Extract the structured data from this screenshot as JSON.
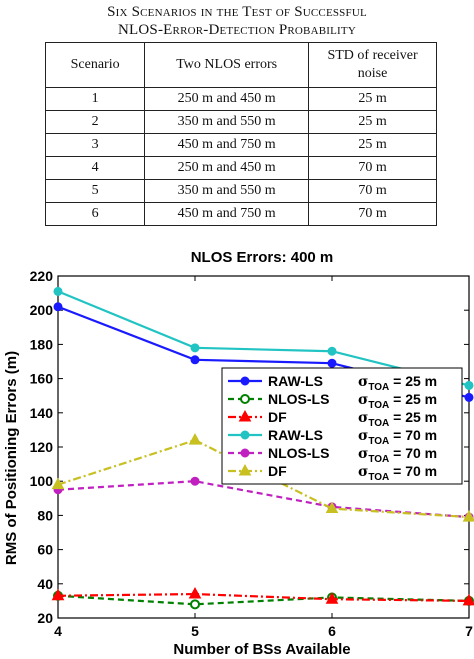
{
  "table": {
    "caption_line1": "Six Scenarios in the Test of Successful",
    "caption_line2": "NLOS-Error-Detection Probability",
    "headers": [
      "Scenario",
      "Two NLOS errors",
      "STD of receiver noise"
    ],
    "rows": [
      [
        "1",
        "250 m and 450 m",
        "25 m"
      ],
      [
        "2",
        "350 m and 550 m",
        "25 m"
      ],
      [
        "3",
        "450 m and 750 m",
        "25 m"
      ],
      [
        "4",
        "250 m and 450 m",
        "70 m"
      ],
      [
        "5",
        "350 m and 550 m",
        "70 m"
      ],
      [
        "6",
        "450 m and 750 m",
        "70 m"
      ]
    ]
  },
  "chart_data": {
    "type": "line",
    "title": "NLOS Errors: 400 m",
    "xlabel": "Number of BSs Available",
    "ylabel": "RMS of Positioning Errors (m)",
    "x": [
      4,
      5,
      6,
      7
    ],
    "xlim": [
      4,
      7
    ],
    "ylim": [
      20,
      220
    ],
    "xticks": [
      4,
      5,
      6,
      7
    ],
    "yticks": [
      20,
      40,
      60,
      80,
      100,
      120,
      140,
      160,
      180,
      200,
      220
    ],
    "grid": false,
    "legend_position": "right",
    "series": [
      {
        "name": "RAW-LS",
        "sigma": "= 25 m",
        "values": [
          202,
          171,
          169,
          149
        ],
        "color": "#1a1aff",
        "dash": "solid",
        "marker": "circle"
      },
      {
        "name": "NLOS-LS",
        "sigma": "= 25 m",
        "values": [
          33,
          28,
          32,
          30
        ],
        "color": "#008000",
        "dash": "dashed",
        "marker": "circle-open"
      },
      {
        "name": "DF",
        "sigma": "= 25 m",
        "values": [
          33,
          34,
          31,
          30
        ],
        "color": "#ff0000",
        "dash": "dashdot",
        "marker": "triangle"
      },
      {
        "name": "RAW-LS",
        "sigma": "= 70 m",
        "values": [
          211,
          178,
          176,
          156
        ],
        "color": "#22c3c3",
        "dash": "solid",
        "marker": "circle"
      },
      {
        "name": "NLOS-LS",
        "sigma": "= 70 m",
        "values": [
          95,
          100,
          85,
          79
        ],
        "color": "#c020c0",
        "dash": "dashed",
        "marker": "circle"
      },
      {
        "name": "DF",
        "sigma": "= 70 m",
        "values": [
          98,
          124,
          84,
          79
        ],
        "color": "#c8c020",
        "dash": "dashdot",
        "marker": "triangle"
      }
    ]
  }
}
